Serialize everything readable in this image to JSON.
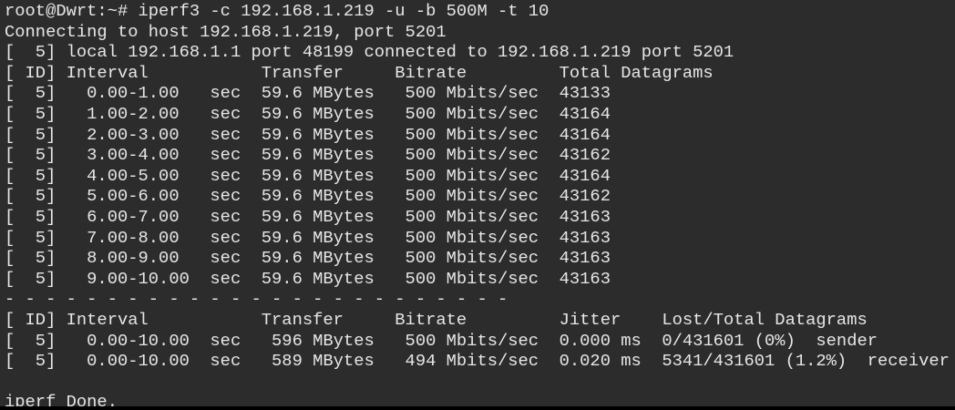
{
  "terminal": {
    "background": "#2c2c2c",
    "foreground": "#e6e6e6",
    "lines": [
      "root@Dwrt:~# iperf3 -c 192.168.1.219 -u -b 500M -t 10",
      "Connecting to host 192.168.1.219, port 5201",
      "[  5] local 192.168.1.1 port 48199 connected to 192.168.1.219 port 5201",
      "[ ID] Interval           Transfer     Bitrate         Total Datagrams",
      "[  5]   0.00-1.00   sec  59.6 MBytes   500 Mbits/sec  43133",
      "[  5]   1.00-2.00   sec  59.6 MBytes   500 Mbits/sec  43164",
      "[  5]   2.00-3.00   sec  59.6 MBytes   500 Mbits/sec  43164",
      "[  5]   3.00-4.00   sec  59.6 MBytes   500 Mbits/sec  43162",
      "[  5]   4.00-5.00   sec  59.6 MBytes   500 Mbits/sec  43164",
      "[  5]   5.00-6.00   sec  59.6 MBytes   500 Mbits/sec  43162",
      "[  5]   6.00-7.00   sec  59.6 MBytes   500 Mbits/sec  43163",
      "[  5]   7.00-8.00   sec  59.6 MBytes   500 Mbits/sec  43163",
      "[  5]   8.00-9.00   sec  59.6 MBytes   500 Mbits/sec  43163",
      "[  5]   9.00-10.00  sec  59.6 MBytes   500 Mbits/sec  43163",
      "- - - - - - - - - - - - - - - - - - - - - - - - -",
      "[ ID] Interval           Transfer     Bitrate         Jitter    Lost/Total Datagrams",
      "[  5]   0.00-10.00  sec   596 MBytes   500 Mbits/sec  0.000 ms  0/431601 (0%)  sender",
      "[  5]   0.00-10.00  sec   589 MBytes   494 Mbits/sec  0.020 ms  5341/431601 (1.2%)  receiver",
      "",
      "iperf Done."
    ]
  }
}
